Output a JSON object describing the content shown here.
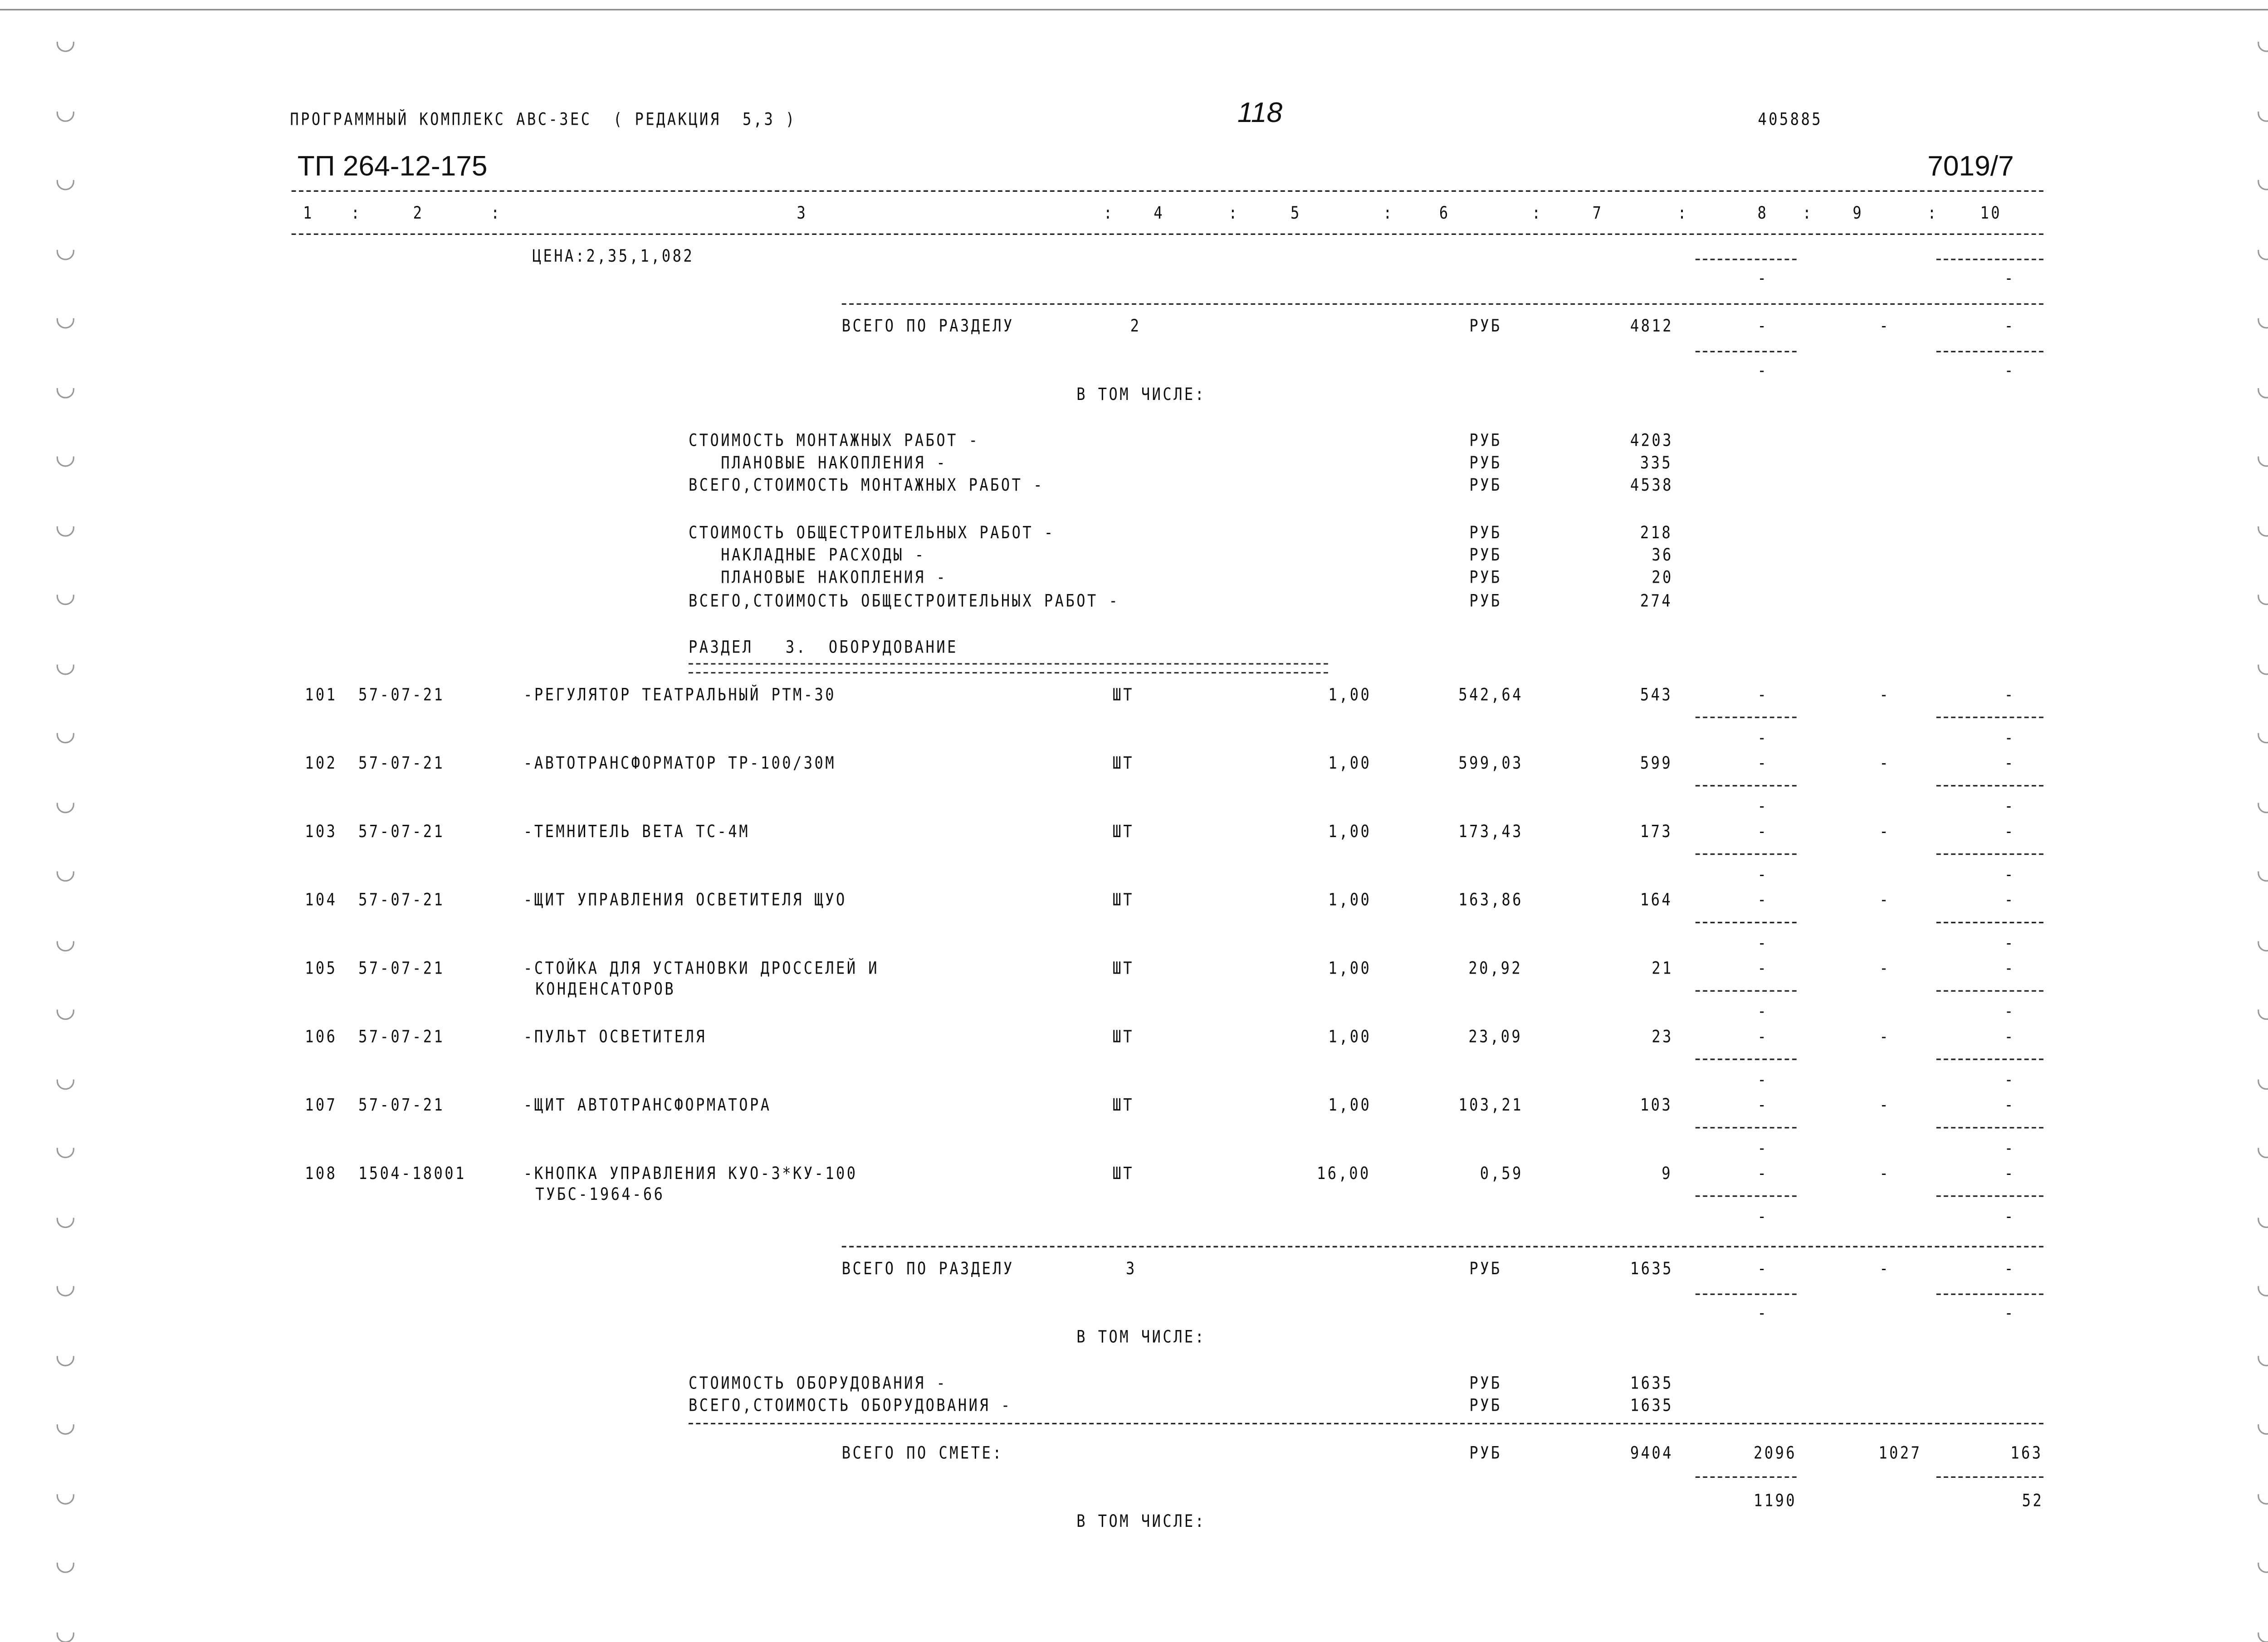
{
  "header": {
    "program": "ПРОГРАММНЫЙ КОМПЛЕКС АВС-3ЕС  ( РЕДАКЦИЯ  5,3 )",
    "page_number": "118",
    "code": "405885",
    "doc_number": "ТП 264-12-175",
    "sheet": "7019/7"
  },
  "columns": [
    "1",
    "2",
    "3",
    "4",
    "5",
    "6",
    "7",
    "8",
    "9",
    "10"
  ],
  "price_note": "ЦЕНА:2,35,1,082",
  "section2_total": {
    "label": "ВСЕГО ПО РАЗДЕЛУ",
    "section": "2",
    "unit": "РУБ",
    "total": "4812",
    "c8": "-",
    "c9": "-",
    "c10": "-"
  },
  "including_label": "В ТОМ ЧИСЛЕ:",
  "section2_breakdown": [
    {
      "label": "СТОИМОСТЬ МОНТАЖНЫХ РАБОТ -",
      "unit": "РУБ",
      "value": "4203"
    },
    {
      "label": "   ПЛАНОВЫЕ НАКОПЛЕНИЯ -",
      "unit": "РУБ",
      "value": "335"
    },
    {
      "label": "ВСЕГО,СТОИМОСТЬ МОНТАЖНЫХ РАБОТ -",
      "unit": "РУБ",
      "value": "4538"
    },
    {
      "label": "СТОИМОСТЬ ОБЩЕСТРОИТЕЛЬНЫХ РАБОТ -",
      "unit": "РУБ",
      "value": "218"
    },
    {
      "label": "   НАКЛАДНЫЕ РАСХОДЫ -",
      "unit": "РУБ",
      "value": "36"
    },
    {
      "label": "   ПЛАНОВЫЕ НАКОПЛЕНИЯ -",
      "unit": "РУБ",
      "value": "20"
    },
    {
      "label": "ВСЕГО,СТОИМОСТЬ ОБЩЕСТРОИТЕЛЬНЫХ РАБОТ -",
      "unit": "РУБ",
      "value": "274"
    }
  ],
  "section3_title": "РАЗДЕЛ   3.  ОБОРУДОВАНИЕ",
  "items": [
    {
      "num": "101",
      "code": "57-07-21",
      "name": "-РЕГУЛЯТОР ТЕАТРАЛЬНЫЙ РТМ-30",
      "name2": "",
      "unit": "ШТ",
      "qty": "1,00",
      "price": "542,64",
      "total": "543"
    },
    {
      "num": "102",
      "code": "57-07-21",
      "name": "-АВТОТРАНСФОРМАТОР ТР-100/30М",
      "name2": "",
      "unit": "ШТ",
      "qty": "1,00",
      "price": "599,03",
      "total": "599"
    },
    {
      "num": "103",
      "code": "57-07-21",
      "name": "-ТЕМНИТЕЛЬ ВЕТА ТС-4М",
      "name2": "",
      "unit": "ШТ",
      "qty": "1,00",
      "price": "173,43",
      "total": "173"
    },
    {
      "num": "104",
      "code": "57-07-21",
      "name": "-ЩИТ УПРАВЛЕНИЯ ОСВЕТИТЕЛЯ ЩУО",
      "name2": "",
      "unit": "ШТ",
      "qty": "1,00",
      "price": "163,86",
      "total": "164"
    },
    {
      "num": "105",
      "code": "57-07-21",
      "name": "-СТОЙКА ДЛЯ УСТАНОВКИ ДРОССЕЛЕЙ И",
      "name2": "КОНДЕНСАТОРОВ",
      "unit": "ШТ",
      "qty": "1,00",
      "price": "20,92",
      "total": "21"
    },
    {
      "num": "106",
      "code": "57-07-21",
      "name": "-ПУЛЬТ ОСВЕТИТЕЛЯ",
      "name2": "",
      "unit": "ШТ",
      "qty": "1,00",
      "price": "23,09",
      "total": "23"
    },
    {
      "num": "107",
      "code": "57-07-21",
      "name": "-ЩИТ АВТОТРАНСФОРМАТОРА",
      "name2": "",
      "unit": "ШТ",
      "qty": "1,00",
      "price": "103,21",
      "total": "103"
    },
    {
      "num": "108",
      "code": "1504-18001",
      "name": "-КНОПКА УПРАВЛЕНИЯ КУО-3*КУ-100",
      "name2": "ТУБС-1964-66",
      "unit": "ШТ",
      "qty": "16,00",
      "price": "0,59",
      "total": "9"
    }
  ],
  "dash": "-",
  "section3_total": {
    "label": "ВСЕГО ПО РАЗДЕЛУ",
    "section": "3",
    "unit": "РУБ",
    "total": "1635",
    "c8": "-",
    "c9": "-",
    "c10": "-"
  },
  "section3_breakdown": [
    {
      "label": "СТОИМОСТЬ ОБОРУДОВАНИЯ -",
      "unit": "РУБ",
      "value": "1635"
    },
    {
      "label": "ВСЕГО,СТОИМОСТЬ ОБОРУДОВАНИЯ -",
      "unit": "РУБ",
      "value": "1635"
    }
  ],
  "grand_total": {
    "label": "ВСЕГО ПО СМЕТЕ:",
    "unit": "РУБ",
    "total": "9404",
    "c8": "2096",
    "c9": "1027",
    "c10": "163",
    "c8_sub": "1190",
    "c10_sub": "52"
  }
}
